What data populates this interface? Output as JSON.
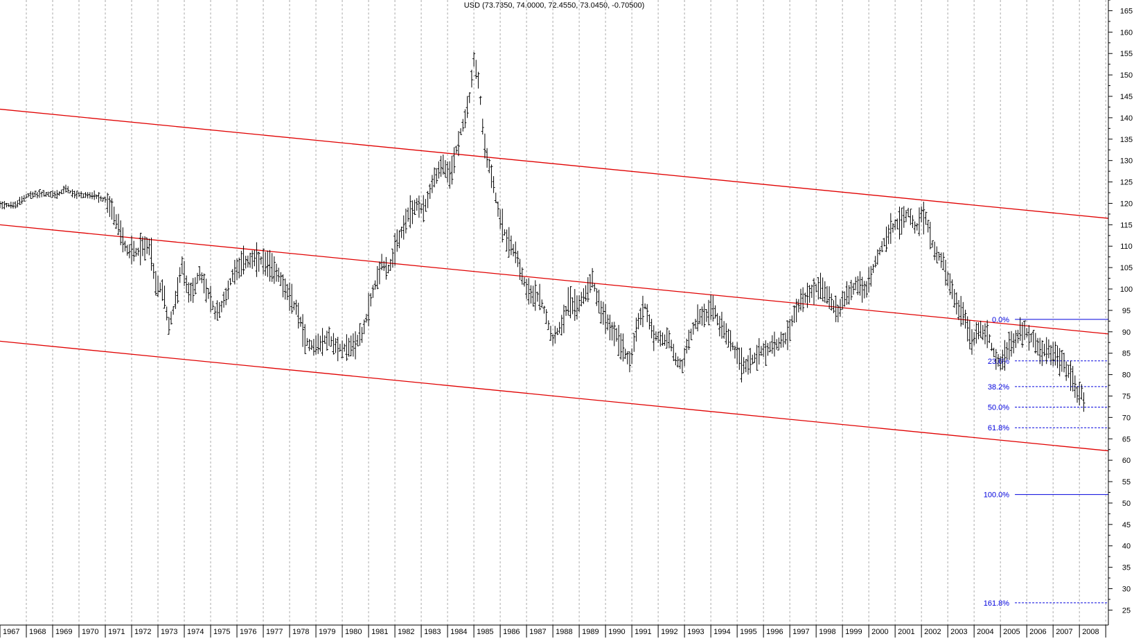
{
  "chart_data": {
    "type": "ohlc",
    "title": "USD (73.7350, 74.0000, 72.4550, 73.0450, -0.70500)",
    "xlabel": "",
    "ylabel": "",
    "x_range": [
      1967.0,
      2009.1
    ],
    "ylim": [
      21.5,
      167.5
    ],
    "grid": {
      "vertical_dashed": true,
      "horizontal": false
    },
    "y_ticks": [
      25,
      30,
      35,
      40,
      45,
      50,
      55,
      60,
      65,
      70,
      75,
      80,
      85,
      90,
      95,
      100,
      105,
      110,
      115,
      120,
      125,
      130,
      135,
      140,
      145,
      150,
      155,
      160,
      165
    ],
    "x_tick_labels": [
      "1967",
      "1968",
      "1969",
      "1970",
      "1971",
      "1972",
      "1973",
      "1974",
      "1975",
      "1976",
      "1977",
      "1978",
      "1979",
      "1980",
      "1981",
      "1982",
      "1983",
      "1984",
      "1985",
      "1986",
      "1987",
      "1988",
      "1989",
      "1990",
      "1991",
      "1992",
      "1993",
      "1994",
      "1995",
      "1996",
      "1997",
      "1998",
      "1999",
      "2000",
      "2001",
      "2002",
      "2003",
      "2004",
      "2005",
      "2006",
      "2007",
      "2008"
    ],
    "colors": {
      "price": "#000000",
      "channel": "#e00000",
      "fib": "#0000dd",
      "grid": "#aaaaaa"
    },
    "price_anchors": [
      [
        1967.0,
        119.8
      ],
      [
        1967.6,
        119.5
      ],
      [
        1968.0,
        121.8
      ],
      [
        1968.6,
        122.2
      ],
      [
        1969.2,
        122.0
      ],
      [
        1969.5,
        123.5
      ],
      [
        1969.8,
        122.0
      ],
      [
        1970.4,
        121.9
      ],
      [
        1971.0,
        120.8
      ],
      [
        1971.2,
        119.0
      ],
      [
        1971.6,
        113.0
      ],
      [
        1971.8,
        109.0
      ],
      [
        1972.2,
        108.8
      ],
      [
        1972.7,
        110.5
      ],
      [
        1972.9,
        101.0
      ],
      [
        1973.2,
        100.0
      ],
      [
        1973.4,
        91.5
      ],
      [
        1973.6,
        95.0
      ],
      [
        1973.9,
        105.5
      ],
      [
        1974.2,
        98.5
      ],
      [
        1974.6,
        103.5
      ],
      [
        1974.9,
        99.0
      ],
      [
        1975.2,
        94.0
      ],
      [
        1975.5,
        97.0
      ],
      [
        1975.9,
        104.5
      ],
      [
        1976.3,
        106.5
      ],
      [
        1976.8,
        106.8
      ],
      [
        1977.2,
        105.5
      ],
      [
        1977.6,
        103.5
      ],
      [
        1977.9,
        99.0
      ],
      [
        1978.3,
        95.0
      ],
      [
        1978.6,
        88.0
      ],
      [
        1978.9,
        86.5
      ],
      [
        1979.2,
        87.5
      ],
      [
        1979.5,
        88.5
      ],
      [
        1979.8,
        86.0
      ],
      [
        1980.1,
        86.5
      ],
      [
        1980.4,
        86.5
      ],
      [
        1980.8,
        90.0
      ],
      [
        1981.1,
        98.0
      ],
      [
        1981.5,
        106.0
      ],
      [
        1981.8,
        104.5
      ],
      [
        1982.1,
        111.0
      ],
      [
        1982.5,
        117.0
      ],
      [
        1982.8,
        119.5
      ],
      [
        1983.1,
        118.5
      ],
      [
        1983.5,
        126.0
      ],
      [
        1983.8,
        129.0
      ],
      [
        1984.1,
        126.0
      ],
      [
        1984.4,
        134.5
      ],
      [
        1984.8,
        143.0
      ],
      [
        1985.0,
        153.5
      ],
      [
        1985.2,
        147.5
      ],
      [
        1985.4,
        133.5
      ],
      [
        1985.7,
        126.0
      ],
      [
        1986.0,
        116.0
      ],
      [
        1986.3,
        111.0
      ],
      [
        1986.6,
        108.5
      ],
      [
        1986.9,
        102.0
      ],
      [
        1987.2,
        98.0
      ],
      [
        1987.5,
        98.5
      ],
      [
        1987.8,
        92.5
      ],
      [
        1988.0,
        88.5
      ],
      [
        1988.3,
        91.5
      ],
      [
        1988.6,
        97.0
      ],
      [
        1988.9,
        96.0
      ],
      [
        1989.2,
        98.5
      ],
      [
        1989.5,
        102.5
      ],
      [
        1989.8,
        95.5
      ],
      [
        1990.1,
        91.5
      ],
      [
        1990.4,
        89.5
      ],
      [
        1990.7,
        85.5
      ],
      [
        1990.95,
        83.0
      ],
      [
        1991.2,
        91.5
      ],
      [
        1991.5,
        96.0
      ],
      [
        1991.8,
        89.5
      ],
      [
        1992.1,
        88.0
      ],
      [
        1992.4,
        88.5
      ],
      [
        1992.7,
        83.0
      ],
      [
        1992.9,
        82.0
      ],
      [
        1993.2,
        89.0
      ],
      [
        1993.5,
        93.0
      ],
      [
        1993.8,
        94.0
      ],
      [
        1994.1,
        95.5
      ],
      [
        1994.4,
        91.0
      ],
      [
        1994.7,
        88.0
      ],
      [
        1994.95,
        85.0
      ],
      [
        1995.2,
        82.0
      ],
      [
        1995.5,
        83.0
      ],
      [
        1995.8,
        85.0
      ],
      [
        1996.1,
        86.0
      ],
      [
        1996.5,
        87.0
      ],
      [
        1996.9,
        89.0
      ],
      [
        1997.2,
        95.0
      ],
      [
        1997.5,
        97.5
      ],
      [
        1997.9,
        100.0
      ],
      [
        1998.2,
        100.5
      ],
      [
        1998.5,
        98.0
      ],
      [
        1998.8,
        94.0
      ],
      [
        1999.1,
        98.0
      ],
      [
        1999.5,
        101.0
      ],
      [
        1999.9,
        99.5
      ],
      [
        2000.2,
        105.5
      ],
      [
        2000.5,
        110.0
      ],
      [
        2000.9,
        114.5
      ],
      [
        2001.2,
        115.5
      ],
      [
        2001.5,
        118.0
      ],
      [
        2001.8,
        114.0
      ],
      [
        2002.0,
        117.0
      ],
      [
        2002.2,
        116.0
      ],
      [
        2002.5,
        108.5
      ],
      [
        2002.8,
        107.0
      ],
      [
        2003.1,
        100.5
      ],
      [
        2003.4,
        95.5
      ],
      [
        2003.7,
        92.5
      ],
      [
        2003.95,
        87.5
      ],
      [
        2004.2,
        91.0
      ],
      [
        2004.5,
        89.5
      ],
      [
        2004.8,
        84.5
      ],
      [
        2005.0,
        82.5
      ],
      [
        2005.3,
        86.0
      ],
      [
        2005.6,
        89.0
      ],
      [
        2005.9,
        90.5
      ],
      [
        2006.2,
        88.5
      ],
      [
        2006.5,
        85.5
      ],
      [
        2006.8,
        85.5
      ],
      [
        2007.1,
        84.5
      ],
      [
        2007.4,
        82.5
      ],
      [
        2007.7,
        79.5
      ],
      [
        2007.9,
        76.0
      ],
      [
        2008.1,
        75.5
      ],
      [
        2008.2,
        73.0
      ]
    ],
    "channel_lines": [
      {
        "x1": 1967.0,
        "y1": 142.0,
        "x2": 2009.1,
        "y2": 116.5
      },
      {
        "x1": 1967.0,
        "y1": 115.0,
        "x2": 2009.1,
        "y2": 89.5
      },
      {
        "x1": 1967.0,
        "y1": 87.8,
        "x2": 2009.1,
        "y2": 62.2
      }
    ],
    "fib_levels": [
      {
        "label": "0.0%",
        "value": 92.9,
        "style": "solid"
      },
      {
        "label": "23.6%",
        "value": 83.2,
        "style": "dashed"
      },
      {
        "label": "38.2%",
        "value": 77.2,
        "style": "dashed"
      },
      {
        "label": "50.0%",
        "value": 72.4,
        "style": "dashed"
      },
      {
        "label": "61.8%",
        "value": 67.6,
        "style": "dashed"
      },
      {
        "label": "100.0%",
        "value": 52.0,
        "style": "solid"
      },
      {
        "label": "161.8%",
        "value": 26.7,
        "style": "dashed"
      }
    ],
    "fib_start_x": 2005.55
  }
}
